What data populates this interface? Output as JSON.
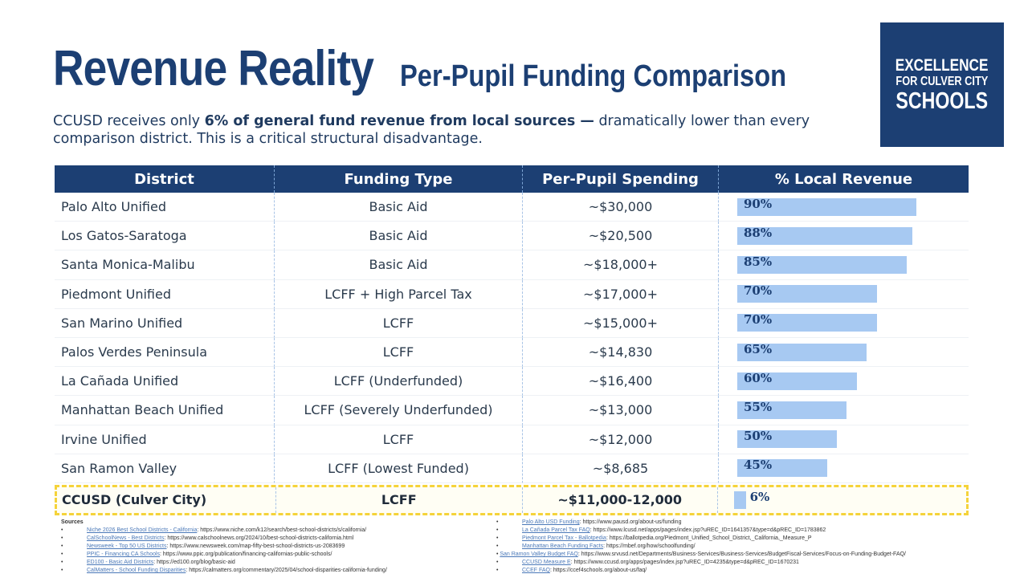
{
  "title": {
    "main": "Revenue Reality",
    "sub": "Per-Pupil Funding Comparison"
  },
  "intro": {
    "pre": "CCUSD receives only ",
    "bold": "6% of general fund revenue from local sources —",
    "post": " dramatically lower than every comparison district. This is a critical structural disadvantage."
  },
  "logo": {
    "line1": "EXCELLENCE",
    "line2": "FOR CULVER CITY",
    "line3": "SCHOOLS"
  },
  "table": {
    "headers": [
      "District",
      "Funding Type",
      "Per-Pupil Spending",
      "% Local Revenue"
    ],
    "rows": [
      {
        "district": "Palo Alto Unified",
        "type": "Basic Aid",
        "spending": "~$30,000",
        "local_label": "90%",
        "local": 90
      },
      {
        "district": "Los Gatos-Saratoga",
        "type": "Basic Aid",
        "spending": "~$20,500",
        "local_label": "88%",
        "local": 88
      },
      {
        "district": "Santa Monica-Malibu",
        "type": "Basic Aid",
        "spending": "~$18,000+",
        "local_label": "85%",
        "local": 85
      },
      {
        "district": "Piedmont Unified",
        "type": "LCFF + High Parcel Tax",
        "spending": "~$17,000+",
        "local_label": "70%",
        "local": 70
      },
      {
        "district": "San Marino Unified",
        "type": "LCFF",
        "spending": "~$15,000+",
        "local_label": "70%",
        "local": 70
      },
      {
        "district": "Palos Verdes Peninsula",
        "type": "LCFF",
        "spending": "~$14,830",
        "local_label": "65%",
        "local": 65
      },
      {
        "district": "La Cañada Unified",
        "type": "LCFF (Underfunded)",
        "spending": "~$16,400",
        "local_label": "60%",
        "local": 60
      },
      {
        "district": "Manhattan Beach Unified",
        "type": "LCFF (Severely Underfunded)",
        "spending": "~$13,000",
        "local_label": "55%",
        "local": 55
      },
      {
        "district": "Irvine Unified",
        "type": "LCFF",
        "spending": "~$12,000",
        "local_label": "50%",
        "local": 50
      },
      {
        "district": "San Ramon Valley",
        "type": "LCFF (Lowest Funded)",
        "spending": "~$8,685",
        "local_label": "45%",
        "local": 45
      }
    ],
    "highlight": {
      "district": "CCUSD (Culver City)",
      "type": "LCFF",
      "spending": "~$11,000-12,000",
      "local_label": "6%",
      "local": 6
    }
  },
  "sources": {
    "heading": "Sources",
    "left": [
      {
        "link": "Niche 2026 Best School Districts - California",
        "url": ": https://www.niche.com/k12/search/best-school-districts/s/california/"
      },
      {
        "link": "CalSchoolNews - Best Districts",
        "url": ": https://www.calschoolnews.org/2024/10/best-school-districts-california.html"
      },
      {
        "link": "Newsweek - Top 50 US Districts",
        "url": ": https://www.newsweek.com/map-fifty-best-school-districts-us-2083699"
      },
      {
        "link": "PPIC - Financing CA Schools",
        "url": ": https://www.ppic.org/publication/financing-californias-public-schools/"
      },
      {
        "link": "ED100 - Basic Aid Districts",
        "url": ": https://ed100.org/blog/basic-aid"
      },
      {
        "link": "CalMatters - School Funding Disparities",
        "url": ": https://calmatters.org/commentary/2025/04/school-disparities-california-funding/"
      }
    ],
    "right": [
      {
        "link": "Palo Alto USD Funding",
        "url": ": https://www.pausd.org/about-us/funding"
      },
      {
        "link": "La Cañada Parcel Tax FAQ",
        "url": ": https://www.lcusd.net/apps/pages/index.jsp?uREC_ID=1641357&type=d&pREC_ID=1783862"
      },
      {
        "link": "Piedmont Parcel Tax - Ballotpedia",
        "url": ": https://ballotpedia.org/Piedmont_Unified_School_District,_California,_Measure_P"
      },
      {
        "link": "Manhattan Beach Funding Facts",
        "url": ": https://mbef.org/how/schoolfunding/"
      },
      {
        "link": "San Ramon Valley Budget FAQ",
        "url": ": https://www.srvusd.net/Departments/Business-Services/Business-Services/BudgetFiscal-Services/Focus-on-Funding-Budget-FAQ/"
      },
      {
        "link": "CCUSD Measure E",
        "url": ": https://www.ccusd.org/apps/pages/index.jsp?uREC_ID=4235&type=d&pREC_ID=1670231"
      },
      {
        "link": "CCEF FAQ",
        "url": ": https://ccef4schools.org/about-us/faq/"
      }
    ]
  },
  "colors": {
    "brand": "#1c3f73",
    "bar": "#a7c9f2",
    "highlight_border": "#f5d33a"
  }
}
